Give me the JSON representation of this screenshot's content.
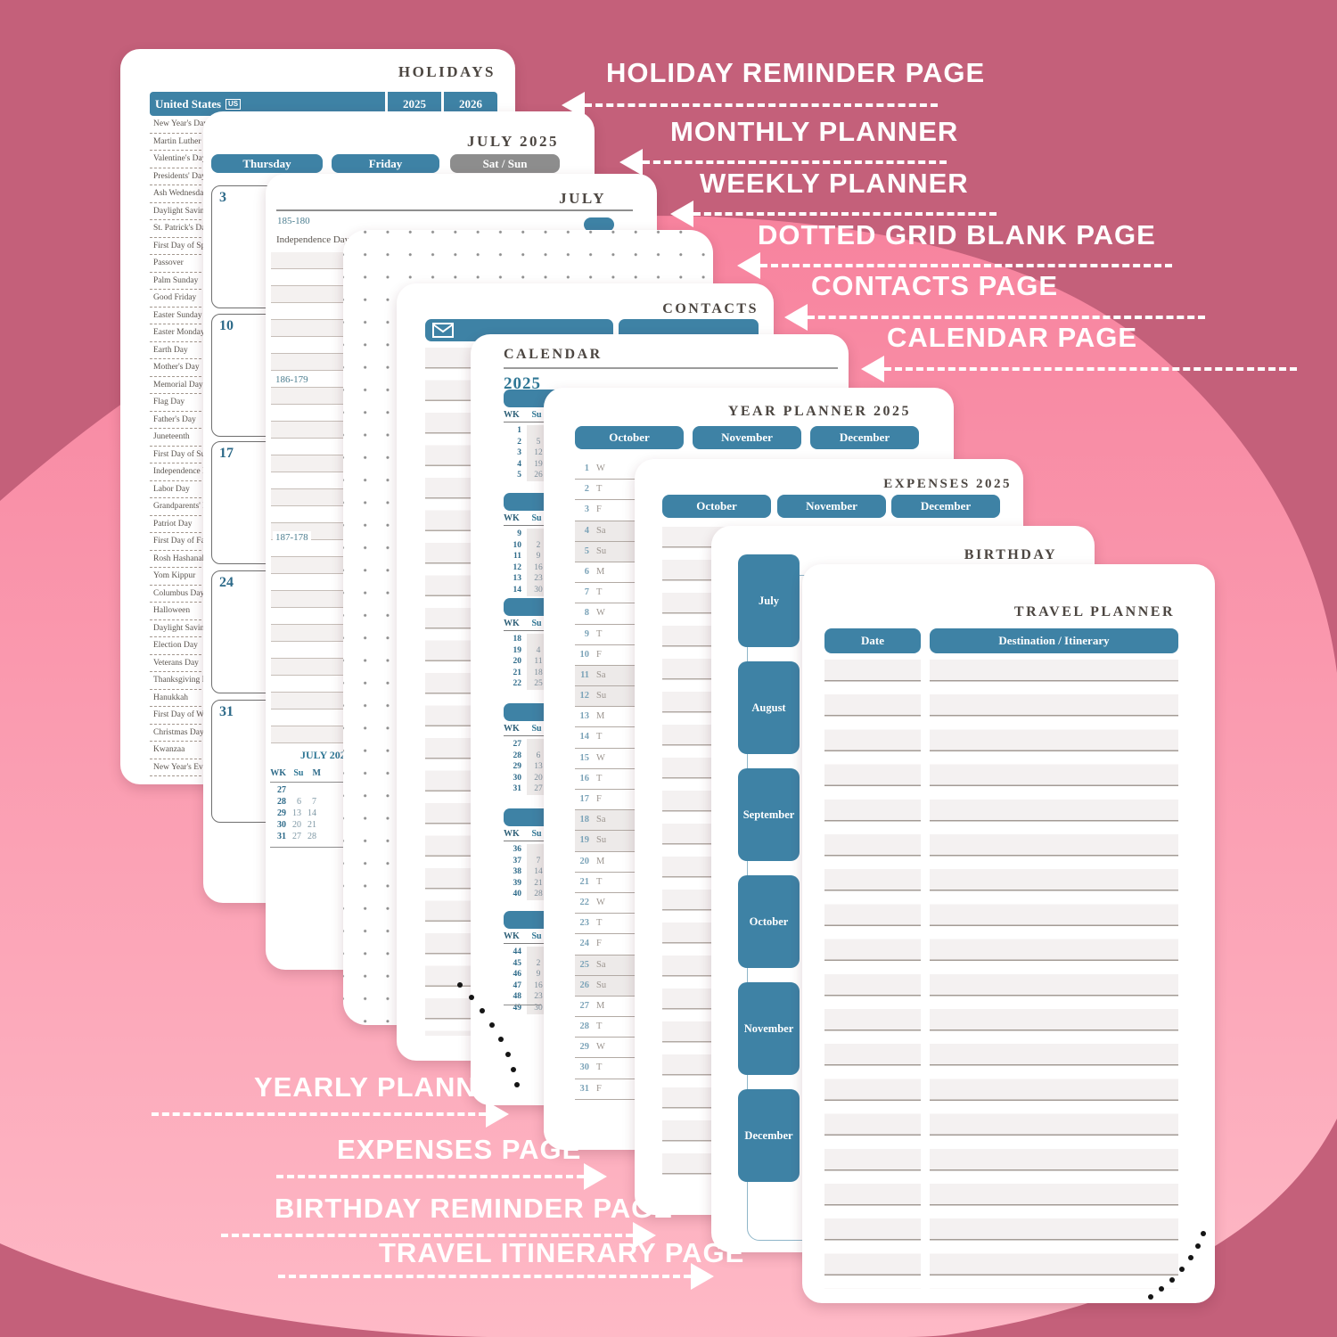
{
  "colors": {
    "base_pink": "#c4607a",
    "blob_top": "#f7839e",
    "blob_bottom": "#feb9c6",
    "teal": "#3e82a5",
    "gray_tab": "#8d8d8d",
    "title_text": "#4c4641"
  },
  "callouts": {
    "right": [
      "HOLIDAY REMINDER PAGE",
      "MONTHLY PLANNER",
      "WEEKLY PLANNER",
      "DOTTED GRID BLANK PAGE",
      "CONTACTS PAGE",
      "CALENDAR PAGE"
    ],
    "left": [
      "YEARLY PLANNER",
      "EXPENSES PAGE",
      "BIRTHDAY REMINDER PAGE",
      "TRAVEL ITINERARY PAGE"
    ]
  },
  "holidays_page": {
    "title": "HOLIDAYS",
    "country": "United States",
    "country_code": "US",
    "year_columns": [
      "2025",
      "2026"
    ],
    "items": [
      "New Year's Day",
      "Martin Luther King Day",
      "Valentine's Day",
      "Presidents' Day",
      "Ash Wednesday",
      "Daylight Saving Time",
      "St. Patrick's Day",
      "First Day of Spring",
      "Passover",
      "Palm Sunday",
      "Good Friday",
      "Easter Sunday",
      "Easter Monday",
      "Earth Day",
      "Mother's Day",
      "Memorial Day",
      "Flag Day",
      "Father's Day",
      "Juneteenth",
      "First Day of Summer",
      "Independence Day",
      "Labor Day",
      "Grandparents' Day",
      "Patriot Day",
      "First Day of Fall",
      "Rosh Hashanah",
      "Yom Kippur",
      "Columbus Day",
      "Halloween",
      "Daylight Saving Ends",
      "Election Day",
      "Veterans Day",
      "Thanksgiving Day",
      "Hanukkah",
      "First Day of Winter",
      "Christmas Day",
      "Kwanzaa",
      "New Year's Eve"
    ]
  },
  "monthly_page": {
    "title": "JULY 2025",
    "day_headers": [
      "Thursday",
      "Friday",
      "Sat / Sun"
    ],
    "dates": [
      "3",
      "10",
      "17",
      "24",
      "31"
    ]
  },
  "weekly_page": {
    "title": "JULY",
    "day_markers": [
      "185-180",
      "186-179",
      "187-178"
    ],
    "holiday_note": "Independence Day",
    "mini_calendar": {
      "title": "JULY 2025",
      "headers": [
        "WK",
        "Su",
        "M"
      ],
      "rows": [
        [
          "27",
          "",
          ""
        ],
        [
          "28",
          "6",
          "7"
        ],
        [
          "29",
          "13",
          "14"
        ],
        [
          "30",
          "20",
          "21"
        ],
        [
          "31",
          "27",
          "28"
        ]
      ]
    }
  },
  "contacts_page": {
    "title": "CONTACTS"
  },
  "calendar_page": {
    "title": "CALENDAR",
    "year": "2025",
    "column_headers": [
      "WK",
      "Su"
    ],
    "blocks": [
      {
        "weeks": [
          "1",
          "2",
          "3",
          "4",
          "5"
        ],
        "sundays": [
          "",
          "5",
          "12",
          "19",
          "26"
        ]
      },
      {
        "weeks": [
          "9",
          "10",
          "11",
          "12",
          "13",
          "14"
        ],
        "sundays": [
          "",
          "2",
          "9",
          "16",
          "23",
          "30"
        ]
      },
      {
        "weeks": [
          "18",
          "19",
          "20",
          "21",
          "22"
        ],
        "sundays": [
          "",
          "4",
          "11",
          "18",
          "25"
        ]
      },
      {
        "weeks": [
          "27",
          "28",
          "29",
          "30",
          "31"
        ],
        "sundays": [
          "",
          "6",
          "13",
          "20",
          "27"
        ]
      },
      {
        "weeks": [
          "36",
          "37",
          "38",
          "39",
          "40"
        ],
        "sundays": [
          "",
          "7",
          "14",
          "21",
          "28"
        ]
      },
      {
        "weeks": [
          "44",
          "45",
          "46",
          "47",
          "48",
          "49"
        ],
        "sundays": [
          "",
          "2",
          "9",
          "16",
          "23",
          "30"
        ]
      }
    ]
  },
  "year_planner_page": {
    "title": "YEAR PLANNER 2025",
    "month_tabs": [
      "October",
      "November",
      "December"
    ],
    "days": [
      [
        "1",
        "W"
      ],
      [
        "2",
        "T"
      ],
      [
        "3",
        "F"
      ],
      [
        "4",
        "Sa"
      ],
      [
        "5",
        "Su"
      ],
      [
        "6",
        "M"
      ],
      [
        "7",
        "T"
      ],
      [
        "8",
        "W"
      ],
      [
        "9",
        "T"
      ],
      [
        "10",
        "F"
      ],
      [
        "11",
        "Sa"
      ],
      [
        "12",
        "Su"
      ],
      [
        "13",
        "M"
      ],
      [
        "14",
        "T"
      ],
      [
        "15",
        "W"
      ],
      [
        "16",
        "T"
      ],
      [
        "17",
        "F"
      ],
      [
        "18",
        "Sa"
      ],
      [
        "19",
        "Su"
      ],
      [
        "20",
        "M"
      ],
      [
        "21",
        "T"
      ],
      [
        "22",
        "W"
      ],
      [
        "23",
        "T"
      ],
      [
        "24",
        "F"
      ],
      [
        "25",
        "Sa"
      ],
      [
        "26",
        "Su"
      ],
      [
        "27",
        "M"
      ],
      [
        "28",
        "T"
      ],
      [
        "29",
        "W"
      ],
      [
        "30",
        "T"
      ],
      [
        "31",
        "F"
      ]
    ]
  },
  "expenses_page": {
    "title": "EXPENSES 2025",
    "month_tabs": [
      "October",
      "November",
      "December"
    ]
  },
  "birthday_page": {
    "title": "BIRTHDAY",
    "month_tabs": [
      "July",
      "August",
      "September",
      "October",
      "November",
      "December"
    ]
  },
  "travel_page": {
    "title": "TRAVEL PLANNER",
    "column_headers": [
      "Date",
      "Destination / Itinerary"
    ]
  }
}
